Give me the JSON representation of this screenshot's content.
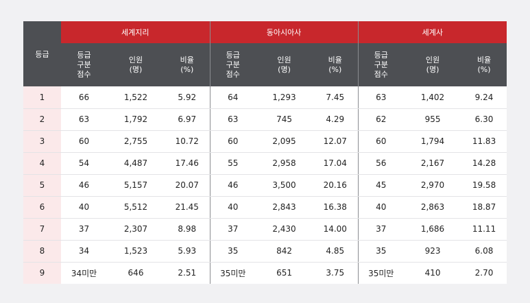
{
  "header": {
    "grade_label": "등급",
    "subjects": [
      "세계지리",
      "동아시아사",
      "세계사"
    ],
    "columns": [
      [
        "등급",
        "구분",
        "점수"
      ],
      [
        "인원",
        "(명)"
      ],
      [
        "비율",
        "(%)"
      ]
    ]
  },
  "rows": [
    {
      "grade": "1",
      "cells": [
        "66",
        "1,522",
        "5.92",
        "64",
        "1,293",
        "7.45",
        "63",
        "1,402",
        "9.24"
      ]
    },
    {
      "grade": "2",
      "cells": [
        "63",
        "1,792",
        "6.97",
        "63",
        "745",
        "4.29",
        "62",
        "955",
        "6.30"
      ]
    },
    {
      "grade": "3",
      "cells": [
        "60",
        "2,755",
        "10.72",
        "60",
        "2,095",
        "12.07",
        "60",
        "1,794",
        "11.83"
      ]
    },
    {
      "grade": "4",
      "cells": [
        "54",
        "4,487",
        "17.46",
        "55",
        "2,958",
        "17.04",
        "56",
        "2,167",
        "14.28"
      ]
    },
    {
      "grade": "5",
      "cells": [
        "46",
        "5,157",
        "20.07",
        "46",
        "3,500",
        "20.16",
        "45",
        "2,970",
        "19.58"
      ]
    },
    {
      "grade": "6",
      "cells": [
        "40",
        "5,512",
        "21.45",
        "40",
        "2,843",
        "16.38",
        "40",
        "2,863",
        "18.87"
      ]
    },
    {
      "grade": "7",
      "cells": [
        "37",
        "2,307",
        "8.98",
        "37",
        "2,430",
        "14.00",
        "37",
        "1,686",
        "11.11"
      ]
    },
    {
      "grade": "8",
      "cells": [
        "34",
        "1,523",
        "5.93",
        "35",
        "842",
        "4.85",
        "35",
        "923",
        "6.08"
      ]
    },
    {
      "grade": "9",
      "cells": [
        "34미만",
        "646",
        "2.51",
        "35미만",
        "651",
        "3.75",
        "35미만",
        "410",
        "2.70"
      ]
    }
  ],
  "colors": {
    "header_dark": "#4d4f53",
    "header_red": "#c8272c",
    "grade_cell_bg": "#fbe9ea",
    "page_bg": "#f1f1f3"
  }
}
